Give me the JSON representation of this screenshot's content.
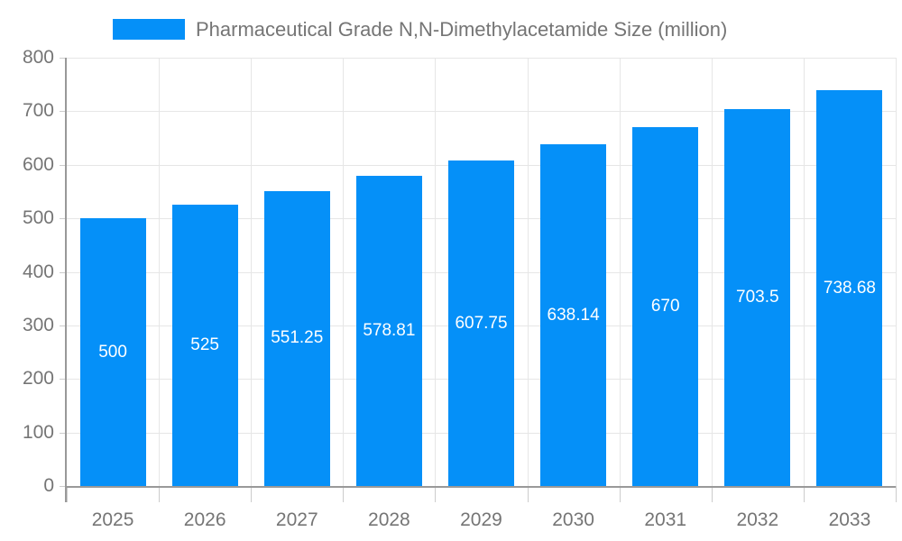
{
  "chart_data": {
    "type": "bar",
    "title": "Pharmaceutical Grade N,N-Dimethylacetamide Size (million)",
    "categories": [
      "2025",
      "2026",
      "2027",
      "2028",
      "2029",
      "2030",
      "2031",
      "2032",
      "2033"
    ],
    "values": [
      500,
      525,
      551.25,
      578.81,
      607.75,
      638.14,
      670,
      703.5,
      738.68
    ],
    "value_labels": [
      "500",
      "525",
      "551.25",
      "578.81",
      "607.75",
      "638.14",
      "670",
      "703.5",
      "738.68"
    ],
    "xlabel": "",
    "ylabel": "",
    "ylim": [
      0,
      800
    ],
    "ytick_step": 100,
    "ytick_labels": [
      "0",
      "100",
      "200",
      "300",
      "400",
      "500",
      "600",
      "700",
      "800"
    ],
    "grid": true,
    "legend_position": "top",
    "colors": {
      "bar": "#0590f8",
      "bar_value_text": "#ffffff",
      "axis_text": "#757575",
      "title_text": "#757575",
      "grid_line": "#e6e6e6",
      "axis_line": "#999999",
      "tick_line": "#cccccc",
      "background": "#ffffff"
    }
  }
}
